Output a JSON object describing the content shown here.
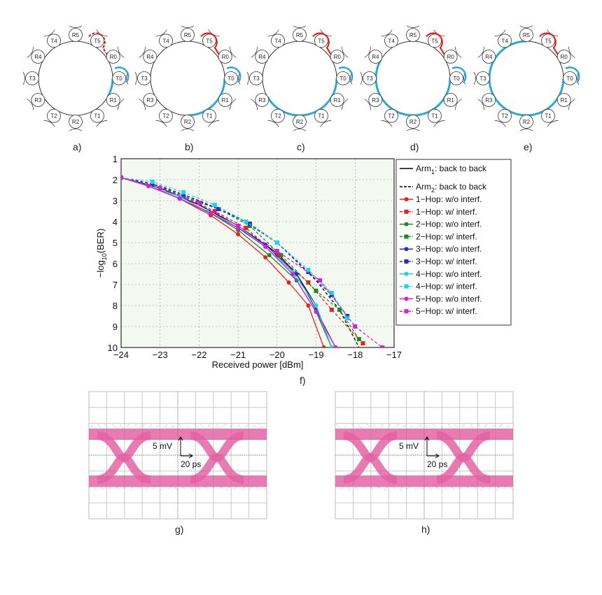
{
  "rings": {
    "captions": [
      "a)",
      "b)",
      "c)",
      "d)",
      "e)"
    ],
    "node_labels": [
      "R5",
      "T5",
      "R0",
      "T0",
      "R1",
      "T1",
      "R2",
      "T2",
      "R3",
      "T3",
      "R4",
      "T4"
    ],
    "colors": {
      "red": "#e8221b",
      "blue": "#2aa6d8",
      "ring": "#333333"
    }
  },
  "chart_data": {
    "type": "line",
    "caption": "f)",
    "xlabel": "Received power [dBm]",
    "ylabel": "-log10(BER)",
    "xlim": [
      -24,
      -17
    ],
    "ylim": [
      1,
      10
    ],
    "y_inverted": true,
    "xticks": [
      -24,
      -23,
      -22,
      -21,
      -20,
      -19,
      -18,
      -17
    ],
    "yticks": [
      1,
      2,
      3,
      4,
      5,
      6,
      7,
      8,
      9,
      10
    ],
    "grid": true,
    "legend_position": "right",
    "series": [
      {
        "name": "Arm1: back to back",
        "label_main": "Arm",
        "label_sub": "1",
        "label_rest": ": back to back",
        "color": "#000000",
        "dash": false,
        "marker": null,
        "x": [
          -24.0,
          -23.0,
          -22.0,
          -21.0,
          -20.0,
          -19.5,
          -19.0,
          -18.6
        ],
        "y": [
          1.9,
          2.4,
          3.2,
          4.2,
          5.5,
          6.5,
          8.0,
          10.0
        ]
      },
      {
        "name": "Arm2: back to back",
        "label_main": "Arm",
        "label_sub": "2",
        "label_rest": ": back to back",
        "color": "#000000",
        "dash": true,
        "marker": null,
        "x": [
          -24.0,
          -23.0,
          -22.0,
          -21.0,
          -20.0,
          -19.0,
          -18.4,
          -17.9
        ],
        "y": [
          1.9,
          2.3,
          3.0,
          3.8,
          5.0,
          6.8,
          8.2,
          10.0
        ]
      },
      {
        "name": "1-Hop: w/o interf.",
        "color": "#e8221b",
        "dash": false,
        "marker": "circle",
        "x": [
          -24.0,
          -23.3,
          -22.5,
          -21.7,
          -21.0,
          -20.3,
          -19.7,
          -19.2,
          -18.8
        ],
        "y": [
          1.9,
          2.3,
          2.9,
          3.7,
          4.6,
          5.7,
          6.9,
          8.0,
          10.0
        ]
      },
      {
        "name": "1-Hop: w/ interf.",
        "color": "#e8221b",
        "dash": true,
        "marker": "square",
        "x": [
          -24.0,
          -23.2,
          -22.4,
          -21.6,
          -20.8,
          -20.0,
          -19.2,
          -18.6,
          -17.8
        ],
        "y": [
          1.9,
          2.2,
          2.8,
          3.5,
          4.3,
          5.6,
          6.9,
          8.2,
          9.8
        ]
      },
      {
        "name": "2-Hop: w/o interf.",
        "color": "#1e8a1e",
        "dash": false,
        "marker": "circle",
        "x": [
          -24.0,
          -23.3,
          -22.5,
          -21.7,
          -21.0,
          -20.2,
          -19.5,
          -19.0,
          -18.6
        ],
        "y": [
          1.9,
          2.3,
          2.9,
          3.6,
          4.4,
          5.6,
          6.8,
          8.3,
          10.0
        ]
      },
      {
        "name": "2-Hop: w/ interf.",
        "color": "#1e8a1e",
        "dash": true,
        "marker": "square",
        "x": [
          -24.0,
          -23.2,
          -22.4,
          -21.5,
          -20.7,
          -19.9,
          -19.0,
          -18.4,
          -17.9
        ],
        "y": [
          1.9,
          2.2,
          2.8,
          3.4,
          4.2,
          5.6,
          7.3,
          8.2,
          9.6
        ]
      },
      {
        "name": "3-Hop: w/o interf.",
        "color": "#1f2fd6",
        "dash": false,
        "marker": "circle",
        "x": [
          -24.0,
          -23.3,
          -22.5,
          -21.7,
          -21.0,
          -20.3,
          -19.5,
          -19.0,
          -18.5
        ],
        "y": [
          1.9,
          2.3,
          2.9,
          3.6,
          4.3,
          5.1,
          6.5,
          8.2,
          10.0
        ]
      },
      {
        "name": "3-Hop: w/ interf.",
        "color": "#1f2fd6",
        "dash": true,
        "marker": "square",
        "x": [
          -24.0,
          -23.2,
          -22.4,
          -21.5,
          -20.7,
          -20.0,
          -19.2,
          -18.6,
          -18.2
        ],
        "y": [
          1.9,
          2.2,
          2.8,
          3.4,
          4.1,
          5.0,
          6.4,
          7.5,
          8.5
        ]
      },
      {
        "name": "4-Hop: w/o interf.",
        "color": "#1ad7e6",
        "dash": false,
        "marker": "circle",
        "x": [
          -24.0,
          -23.3,
          -22.5,
          -21.8,
          -21.0,
          -20.3,
          -19.6,
          -19.0,
          -18.6
        ],
        "y": [
          1.9,
          2.3,
          2.8,
          3.5,
          4.2,
          5.2,
          6.4,
          8.0,
          10.0
        ]
      },
      {
        "name": "4-Hop: w/ interf.",
        "color": "#1ad7e6",
        "dash": true,
        "marker": "square",
        "x": [
          -24.0,
          -23.2,
          -22.4,
          -21.6,
          -20.8,
          -20.0,
          -19.2,
          -18.6,
          -18.2
        ],
        "y": [
          1.9,
          2.1,
          2.6,
          3.2,
          4.0,
          5.0,
          6.3,
          7.4,
          8.6
        ]
      },
      {
        "name": "5-Hop: w/o interf.",
        "color": "#e21ad6",
        "dash": false,
        "marker": "circle",
        "x": [
          -24.0,
          -23.3,
          -22.5,
          -21.7,
          -21.0,
          -20.3,
          -19.6,
          -19.0,
          -18.5
        ],
        "y": [
          1.9,
          2.3,
          2.9,
          3.6,
          4.3,
          5.2,
          6.5,
          8.3,
          10.0
        ]
      },
      {
        "name": "5-Hop: w/ interf.",
        "color": "#e21ad6",
        "dash": true,
        "marker": "square",
        "x": [
          -24.0,
          -23.0,
          -22.0,
          -21.0,
          -20.0,
          -18.9,
          -18.0,
          -17.3
        ],
        "y": [
          1.9,
          2.4,
          3.1,
          4.2,
          5.4,
          6.8,
          9.0,
          10.0
        ]
      }
    ]
  },
  "eyes": {
    "captions": [
      "g)",
      "h)"
    ],
    "voltage_label": "5 mV",
    "time_label": "20 ps",
    "color": "#e0539b"
  }
}
